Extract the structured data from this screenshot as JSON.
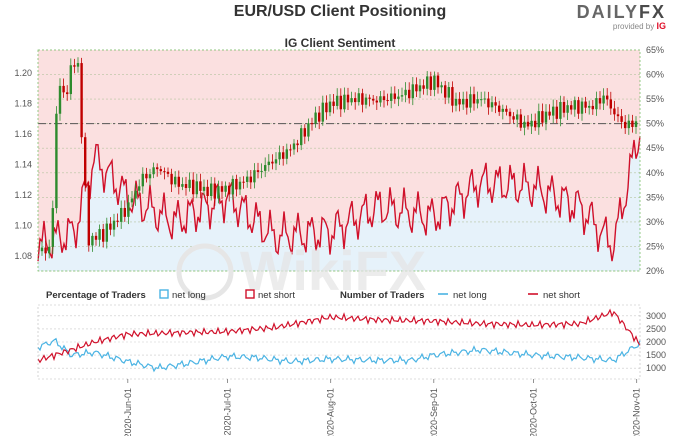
{
  "header": {
    "title": "EUR/USD Client Positioning",
    "logo_daily": "DAILY",
    "logo_fx": "FX",
    "logo_sub": "provided by",
    "logo_ig": "IG"
  },
  "watermark": "WikiFX",
  "colors": {
    "bull": "#2e8b2e",
    "bear": "#c00000",
    "net_long": "#4ab3e3",
    "net_short": "#d0102a",
    "long_fill": "#e6f2fa",
    "short_fill": "#fbe0e0"
  },
  "chart_data": [
    {
      "type": "line",
      "title": "IG Client Sentiment",
      "y_left": {
        "ticks": [
          "1.08",
          "1.10",
          "1.12",
          "1.14",
          "1.16",
          "1.18",
          "1.20"
        ],
        "range": [
          1.07,
          1.215
        ]
      },
      "y_right": {
        "ticks": [
          "20%",
          "25%",
          "30%",
          "35%",
          "40%",
          "45%",
          "50%",
          "55%",
          "60%",
          "65%"
        ],
        "range": [
          20,
          65
        ]
      },
      "x_ticks": [
        "2020-Jun-01",
        "2020-Jul-01",
        "2020-Aug-01",
        "2020-Sep-01",
        "2020-Oct-01",
        "2020-Nov-01"
      ],
      "x_range": [
        "2020-May-05",
        "2020-Nov-02"
      ],
      "reference_line": {
        "value": 50,
        "unit": "%"
      },
      "candles_close": [
        {
          "x": "2020-May-05",
          "y": 1.083
        },
        {
          "x": "2020-May-09",
          "y": 1.085
        },
        {
          "x": "2020-May-11",
          "y": 1.2
        },
        {
          "x": "2020-May-13",
          "y": 1.18
        },
        {
          "x": "2020-May-15",
          "y": 1.205
        },
        {
          "x": "2020-May-17",
          "y": 1.205
        },
        {
          "x": "2020-May-20",
          "y": 1.09
        },
        {
          "x": "2020-May-25",
          "y": 1.095
        },
        {
          "x": "2020-Jun-01",
          "y": 1.112
        },
        {
          "x": "2020-Jun-05",
          "y": 1.13
        },
        {
          "x": "2020-Jun-10",
          "y": 1.138
        },
        {
          "x": "2020-Jun-16",
          "y": 1.127
        },
        {
          "x": "2020-Jun-22",
          "y": 1.125
        },
        {
          "x": "2020-Jun-26",
          "y": 1.122
        },
        {
          "x": "2020-Jul-01",
          "y": 1.124
        },
        {
          "x": "2020-Jul-07",
          "y": 1.13
        },
        {
          "x": "2020-Jul-13",
          "y": 1.14
        },
        {
          "x": "2020-Jul-20",
          "y": 1.15
        },
        {
          "x": "2020-Jul-27",
          "y": 1.17
        },
        {
          "x": "2020-Aug-01",
          "y": 1.18
        },
        {
          "x": "2020-Aug-08",
          "y": 1.183
        },
        {
          "x": "2020-Aug-15",
          "y": 1.182
        },
        {
          "x": "2020-Aug-22",
          "y": 1.185
        },
        {
          "x": "2020-Sep-01",
          "y": 1.195
        },
        {
          "x": "2020-Sep-08",
          "y": 1.18
        },
        {
          "x": "2020-Sep-15",
          "y": 1.183
        },
        {
          "x": "2020-Sep-22",
          "y": 1.175
        },
        {
          "x": "2020-Sep-29",
          "y": 1.165
        },
        {
          "x": "2020-Oct-05",
          "y": 1.173
        },
        {
          "x": "2020-Oct-12",
          "y": 1.178
        },
        {
          "x": "2020-Oct-19",
          "y": 1.178
        },
        {
          "x": "2020-Oct-22",
          "y": 1.185
        },
        {
          "x": "2020-Oct-27",
          "y": 1.168
        },
        {
          "x": "2020-Oct-30",
          "y": 1.165
        },
        {
          "x": "2020-Nov-02",
          "y": 1.17
        }
      ],
      "net_long_pct_fill": [
        {
          "x": "2020-May-05",
          "y": 25
        },
        {
          "x": "2020-May-16",
          "y": 28
        },
        {
          "x": "2020-May-22",
          "y": 43
        },
        {
          "x": "2020-Jun-01",
          "y": 35
        },
        {
          "x": "2020-Jun-15",
          "y": 30
        },
        {
          "x": "2020-Jul-01",
          "y": 35
        },
        {
          "x": "2020-Jul-15",
          "y": 27
        },
        {
          "x": "2020-Aug-01",
          "y": 28
        },
        {
          "x": "2020-Aug-15",
          "y": 33
        },
        {
          "x": "2020-Sep-01",
          "y": 31
        },
        {
          "x": "2020-Sep-15",
          "y": 38
        },
        {
          "x": "2020-Oct-01",
          "y": 37
        },
        {
          "x": "2020-Oct-15",
          "y": 33
        },
        {
          "x": "2020-Oct-25",
          "y": 25
        },
        {
          "x": "2020-Nov-02",
          "y": 49
        }
      ],
      "series": []
    },
    {
      "type": "line",
      "legend_left": {
        "title": "Percentage of Traders",
        "items": [
          "net long",
          "net short"
        ]
      },
      "legend_right": {
        "title": "Number of Traders",
        "items": [
          "net long",
          "net short"
        ]
      },
      "y_right": {
        "ticks": [
          "1000",
          "1500",
          "2000",
          "2500",
          "3000"
        ],
        "range": [
          700,
          3300
        ]
      },
      "series": [
        {
          "name": "net long",
          "points": [
            {
              "x": "2020-May-05",
              "y": 1800
            },
            {
              "x": "2020-May-10",
              "y": 2050
            },
            {
              "x": "2020-May-15",
              "y": 1500
            },
            {
              "x": "2020-May-22",
              "y": 1600
            },
            {
              "x": "2020-Jun-01",
              "y": 1250
            },
            {
              "x": "2020-Jun-10",
              "y": 1000
            },
            {
              "x": "2020-Jun-20",
              "y": 1200
            },
            {
              "x": "2020-Jul-01",
              "y": 1450
            },
            {
              "x": "2020-Jul-10",
              "y": 1400
            },
            {
              "x": "2020-Jul-20",
              "y": 1250
            },
            {
              "x": "2020-Aug-01",
              "y": 1350
            },
            {
              "x": "2020-Aug-15",
              "y": 1300
            },
            {
              "x": "2020-Aug-25",
              "y": 1300
            },
            {
              "x": "2020-Sep-01",
              "y": 1500
            },
            {
              "x": "2020-Sep-15",
              "y": 1700
            },
            {
              "x": "2020-Oct-01",
              "y": 1500
            },
            {
              "x": "2020-Oct-15",
              "y": 1400
            },
            {
              "x": "2020-Oct-25",
              "y": 1300
            },
            {
              "x": "2020-Nov-02",
              "y": 1950
            }
          ]
        },
        {
          "name": "net short",
          "points": [
            {
              "x": "2020-May-05",
              "y": 1300
            },
            {
              "x": "2020-May-15",
              "y": 1700
            },
            {
              "x": "2020-May-22",
              "y": 2000
            },
            {
              "x": "2020-Jun-01",
              "y": 2300
            },
            {
              "x": "2020-Jun-15",
              "y": 2350
            },
            {
              "x": "2020-Jul-01",
              "y": 2400
            },
            {
              "x": "2020-Jul-15",
              "y": 2550
            },
            {
              "x": "2020-Aug-01",
              "y": 2950
            },
            {
              "x": "2020-Aug-15",
              "y": 2850
            },
            {
              "x": "2020-Sep-01",
              "y": 2800
            },
            {
              "x": "2020-Sep-15",
              "y": 2700
            },
            {
              "x": "2020-Oct-01",
              "y": 2650
            },
            {
              "x": "2020-Oct-15",
              "y": 2700
            },
            {
              "x": "2020-Oct-25",
              "y": 3150
            },
            {
              "x": "2020-Nov-02",
              "y": 1900
            }
          ]
        }
      ]
    }
  ]
}
